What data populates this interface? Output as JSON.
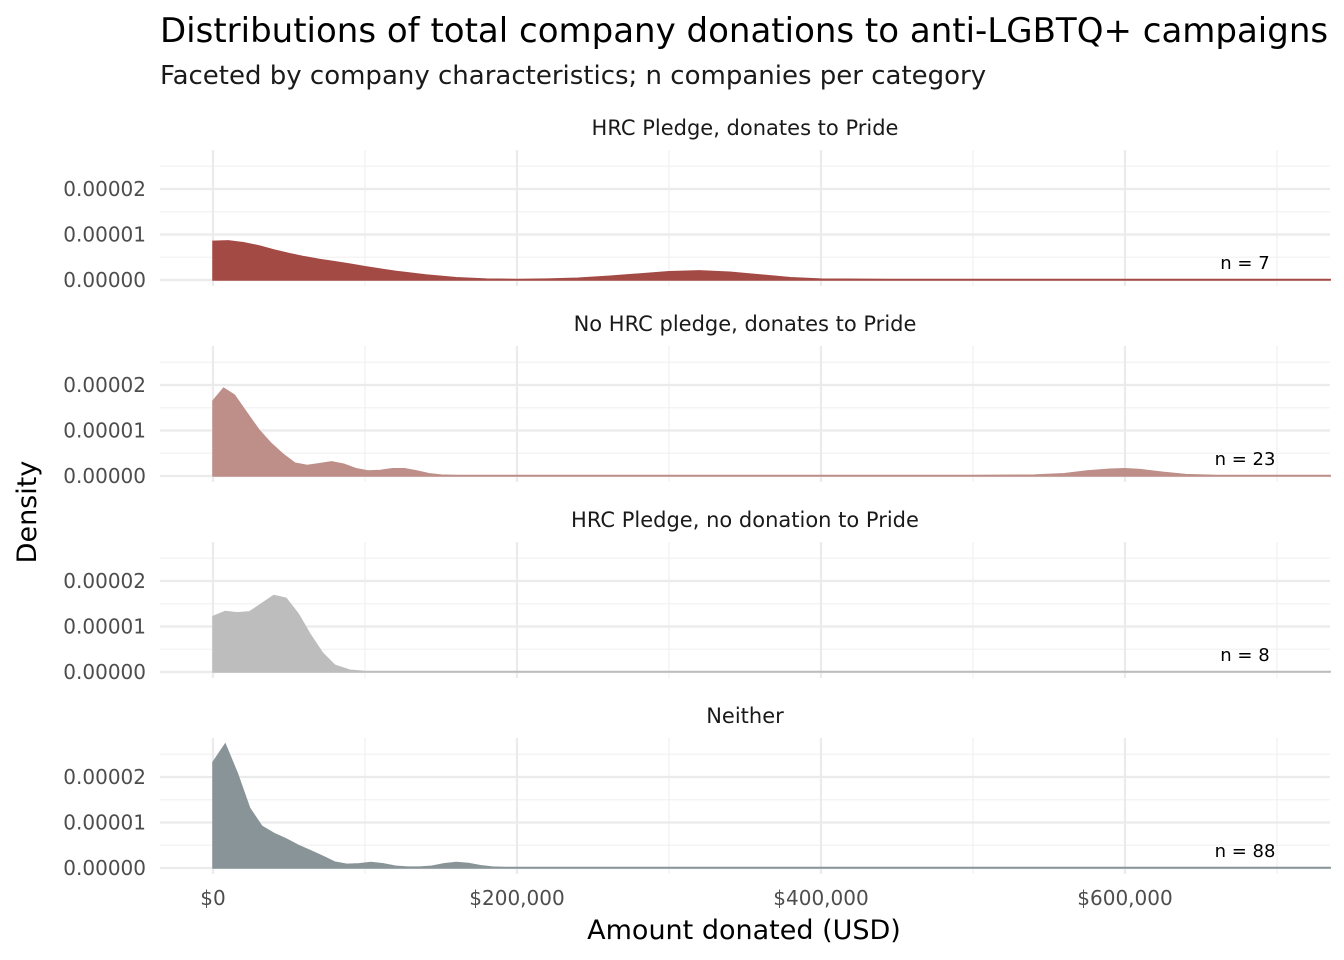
{
  "chart_data": {
    "type": "area",
    "title": "Distributions of total company donations to anti-LGBTQ+ campaigns",
    "subtitle": "Faceted by company characteristics; n companies per category",
    "xlabel": "Amount donated (USD)",
    "ylabel": "Density",
    "xlim": [
      -50000,
      735000
    ],
    "ylim": [
      0,
      3e-05
    ],
    "x_ticks": [
      0,
      200000,
      400000,
      600000
    ],
    "x_tick_labels": [
      "$0",
      "$200,000",
      "$400,000",
      "$600,000"
    ],
    "y_ticks": [
      0,
      1e-05,
      2e-05
    ],
    "y_tick_labels": [
      "0.00000",
      "0.00001",
      "0.00002"
    ],
    "grid": true,
    "legend": "none",
    "facets": [
      {
        "label": "HRC Pledge, donates to Pride",
        "n_label": "n = 7",
        "color": "#a44a45",
        "x": [
          0,
          10000,
          20000,
          30000,
          40000,
          50000,
          60000,
          70000,
          80000,
          90000,
          100000,
          120000,
          140000,
          160000,
          180000,
          200000,
          220000,
          240000,
          260000,
          280000,
          300000,
          320000,
          340000,
          360000,
          380000,
          400000,
          450000,
          500000,
          550000,
          600000,
          650000,
          700000,
          735000
        ],
        "y": [
          8.5e-06,
          8.6e-06,
          8.2e-06,
          7.5e-06,
          6.6e-06,
          5.8e-06,
          5.1e-06,
          4.5e-06,
          4e-06,
          3.5e-06,
          2.9e-06,
          1.9e-06,
          1.1e-06,
          5e-07,
          2e-07,
          1e-07,
          2e-07,
          4e-07,
          8e-07,
          1.3e-06,
          1.8e-06,
          2e-06,
          1.7e-06,
          1.1e-06,
          5e-07,
          2e-07,
          1e-07,
          1e-07,
          1e-07,
          1e-07,
          1e-07,
          1e-07,
          1e-07
        ]
      },
      {
        "label": "No HRC pledge, donates to Pride",
        "n_label": "n = 23",
        "color": "#be8e89",
        "x": [
          0,
          7000,
          14000,
          22000,
          30000,
          38000,
          46000,
          54000,
          62000,
          70000,
          78000,
          86000,
          94000,
          102000,
          110000,
          118000,
          126000,
          134000,
          142000,
          150000,
          160000,
          200000,
          300000,
          400000,
          500000,
          540000,
          560000,
          575000,
          590000,
          600000,
          610000,
          625000,
          640000,
          660000,
          700000,
          735000
        ],
        "y": [
          1.65e-05,
          1.93e-05,
          1.78e-05,
          1.4e-05,
          1.02e-05,
          7.2e-06,
          4.8e-06,
          2.8e-06,
          2.3e-06,
          2.7e-06,
          3.1e-06,
          2.6e-06,
          1.6e-06,
          1.1e-06,
          1.2e-06,
          1.6e-06,
          1.6e-06,
          1.1e-06,
          5e-07,
          2e-07,
          1e-07,
          1e-07,
          1e-07,
          1e-07,
          1e-07,
          2e-07,
          5e-07,
          1.1e-06,
          1.5e-06,
          1.6e-06,
          1.4e-06,
          8e-07,
          3e-07,
          1e-07,
          1e-07,
          1e-07
        ]
      },
      {
        "label": "HRC Pledge, no donation to Pride",
        "n_label": "n = 8",
        "color": "#bdbdbd",
        "x": [
          0,
          8000,
          16000,
          24000,
          32000,
          40000,
          48000,
          56000,
          64000,
          72000,
          80000,
          90000,
          100000,
          120000,
          200000,
          400000,
          600000,
          735000
        ],
        "y": [
          1.22e-05,
          1.33e-05,
          1.3e-05,
          1.32e-05,
          1.5e-05,
          1.68e-05,
          1.62e-05,
          1.28e-05,
          8.2e-06,
          4.2e-06,
          1.5e-06,
          4e-07,
          1e-07,
          1e-07,
          1e-07,
          1e-07,
          1e-07,
          1e-07
        ]
      },
      {
        "label": "Neither",
        "n_label": "n = 88",
        "color": "#889497",
        "x": [
          0,
          8000,
          16000,
          24000,
          32000,
          40000,
          48000,
          56000,
          64000,
          72000,
          80000,
          88000,
          96000,
          104000,
          112000,
          120000,
          128000,
          136000,
          144000,
          152000,
          160000,
          168000,
          176000,
          184000,
          192000,
          200000,
          300000,
          400000,
          500000,
          600000,
          735000
        ],
        "y": [
          2.32e-05,
          2.72e-05,
          2.08e-05,
          1.32e-05,
          9.2e-06,
          7.6e-06,
          6.4e-06,
          5e-06,
          3.8e-06,
          2.6e-06,
          1.3e-06,
          8e-07,
          9e-07,
          1.2e-06,
          9e-07,
          4e-07,
          2e-07,
          2e-07,
          4e-07,
          9e-07,
          1.2e-06,
          1e-06,
          5e-07,
          2e-07,
          1e-07,
          1e-07,
          1e-07,
          1e-07,
          1e-07,
          1e-07,
          1e-07
        ]
      }
    ]
  }
}
